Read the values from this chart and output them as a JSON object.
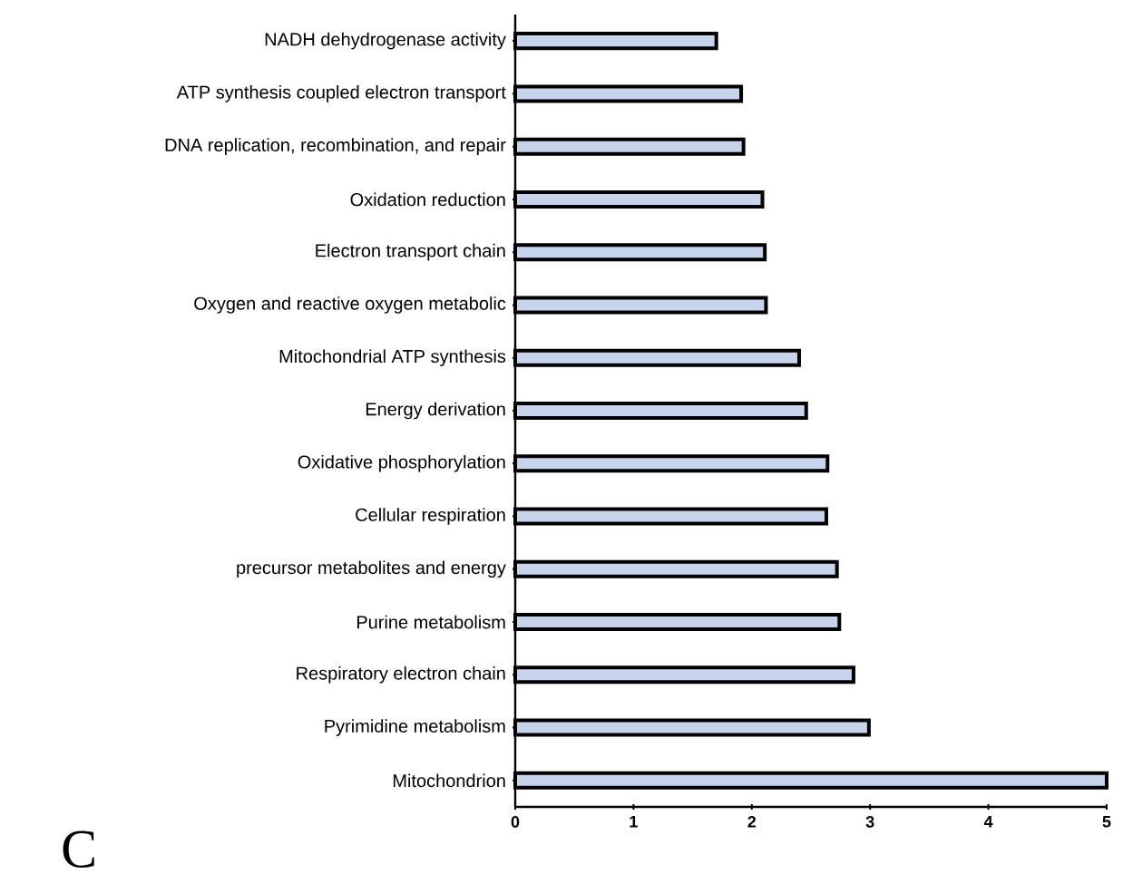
{
  "chart_data": {
    "type": "bar",
    "orientation": "horizontal",
    "categories": [
      "NADH dehydrogenase activity",
      "ATP synthesis coupled electron transport",
      "DNA replication, recombination, and repair",
      "Oxidation reduction",
      "Electron transport chain",
      "Oxygen and reactive oxygen metabolic",
      "Mitochondrial ATP synthesis",
      "Energy derivation",
      "Oxidative phosphorylation",
      "Cellular respiration",
      "precursor metabolites and energy",
      "Purine metabolism",
      "Respiratory electron chain",
      "Pyrimidine metabolism",
      "Mitochondrion"
    ],
    "values": [
      1.7,
      1.91,
      1.93,
      2.09,
      2.11,
      2.12,
      2.4,
      2.46,
      2.64,
      2.63,
      2.72,
      2.74,
      2.86,
      2.99,
      5.0
    ],
    "color": "#c8d4ec",
    "xlim": [
      0,
      5
    ],
    "xticks": [
      0,
      1,
      2,
      3,
      4,
      5
    ],
    "grid": false,
    "annotations": [
      "C"
    ]
  }
}
